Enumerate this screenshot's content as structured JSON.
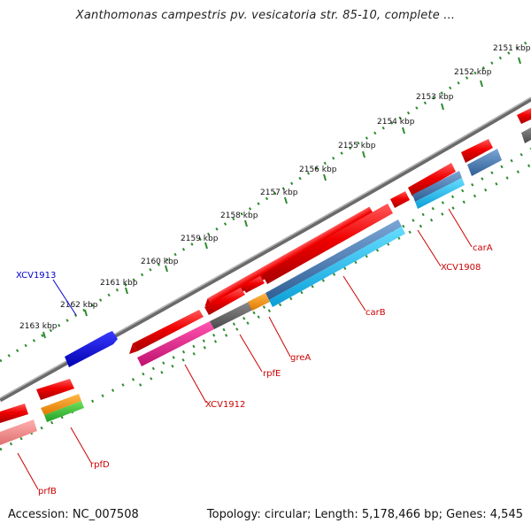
{
  "title": "Xanthomonas campestris pv. vesicatoria str. 85-10, complete ...",
  "footer": {
    "accession": "Accession: NC_007508",
    "summary": "Topology: circular; Length: 5,178,466 bp; Genes: 4,545"
  },
  "colors": {
    "backbone": "#7a7a7a",
    "tick_track": "#2e8b2e",
    "gene_label": "#cc0000",
    "selected_label": "#0000cc"
  },
  "scale": {
    "unit": "kbp",
    "labels": [
      "2151 kbp",
      "2152 kbp",
      "2153 kbp",
      "2154 kbp",
      "2155 kbp",
      "2156 kbp",
      "2157 kbp",
      "2158 kbp",
      "2159 kbp",
      "2160 kbp",
      "2161 kbp",
      "2162 kbp",
      "2163 kbp"
    ]
  },
  "gene_labels": [
    "carA",
    "XCV1908",
    "carB",
    "greA",
    "rpfE",
    "XCV1912",
    "rpfD",
    "prfB"
  ],
  "selected_gene": "XCV1913"
}
